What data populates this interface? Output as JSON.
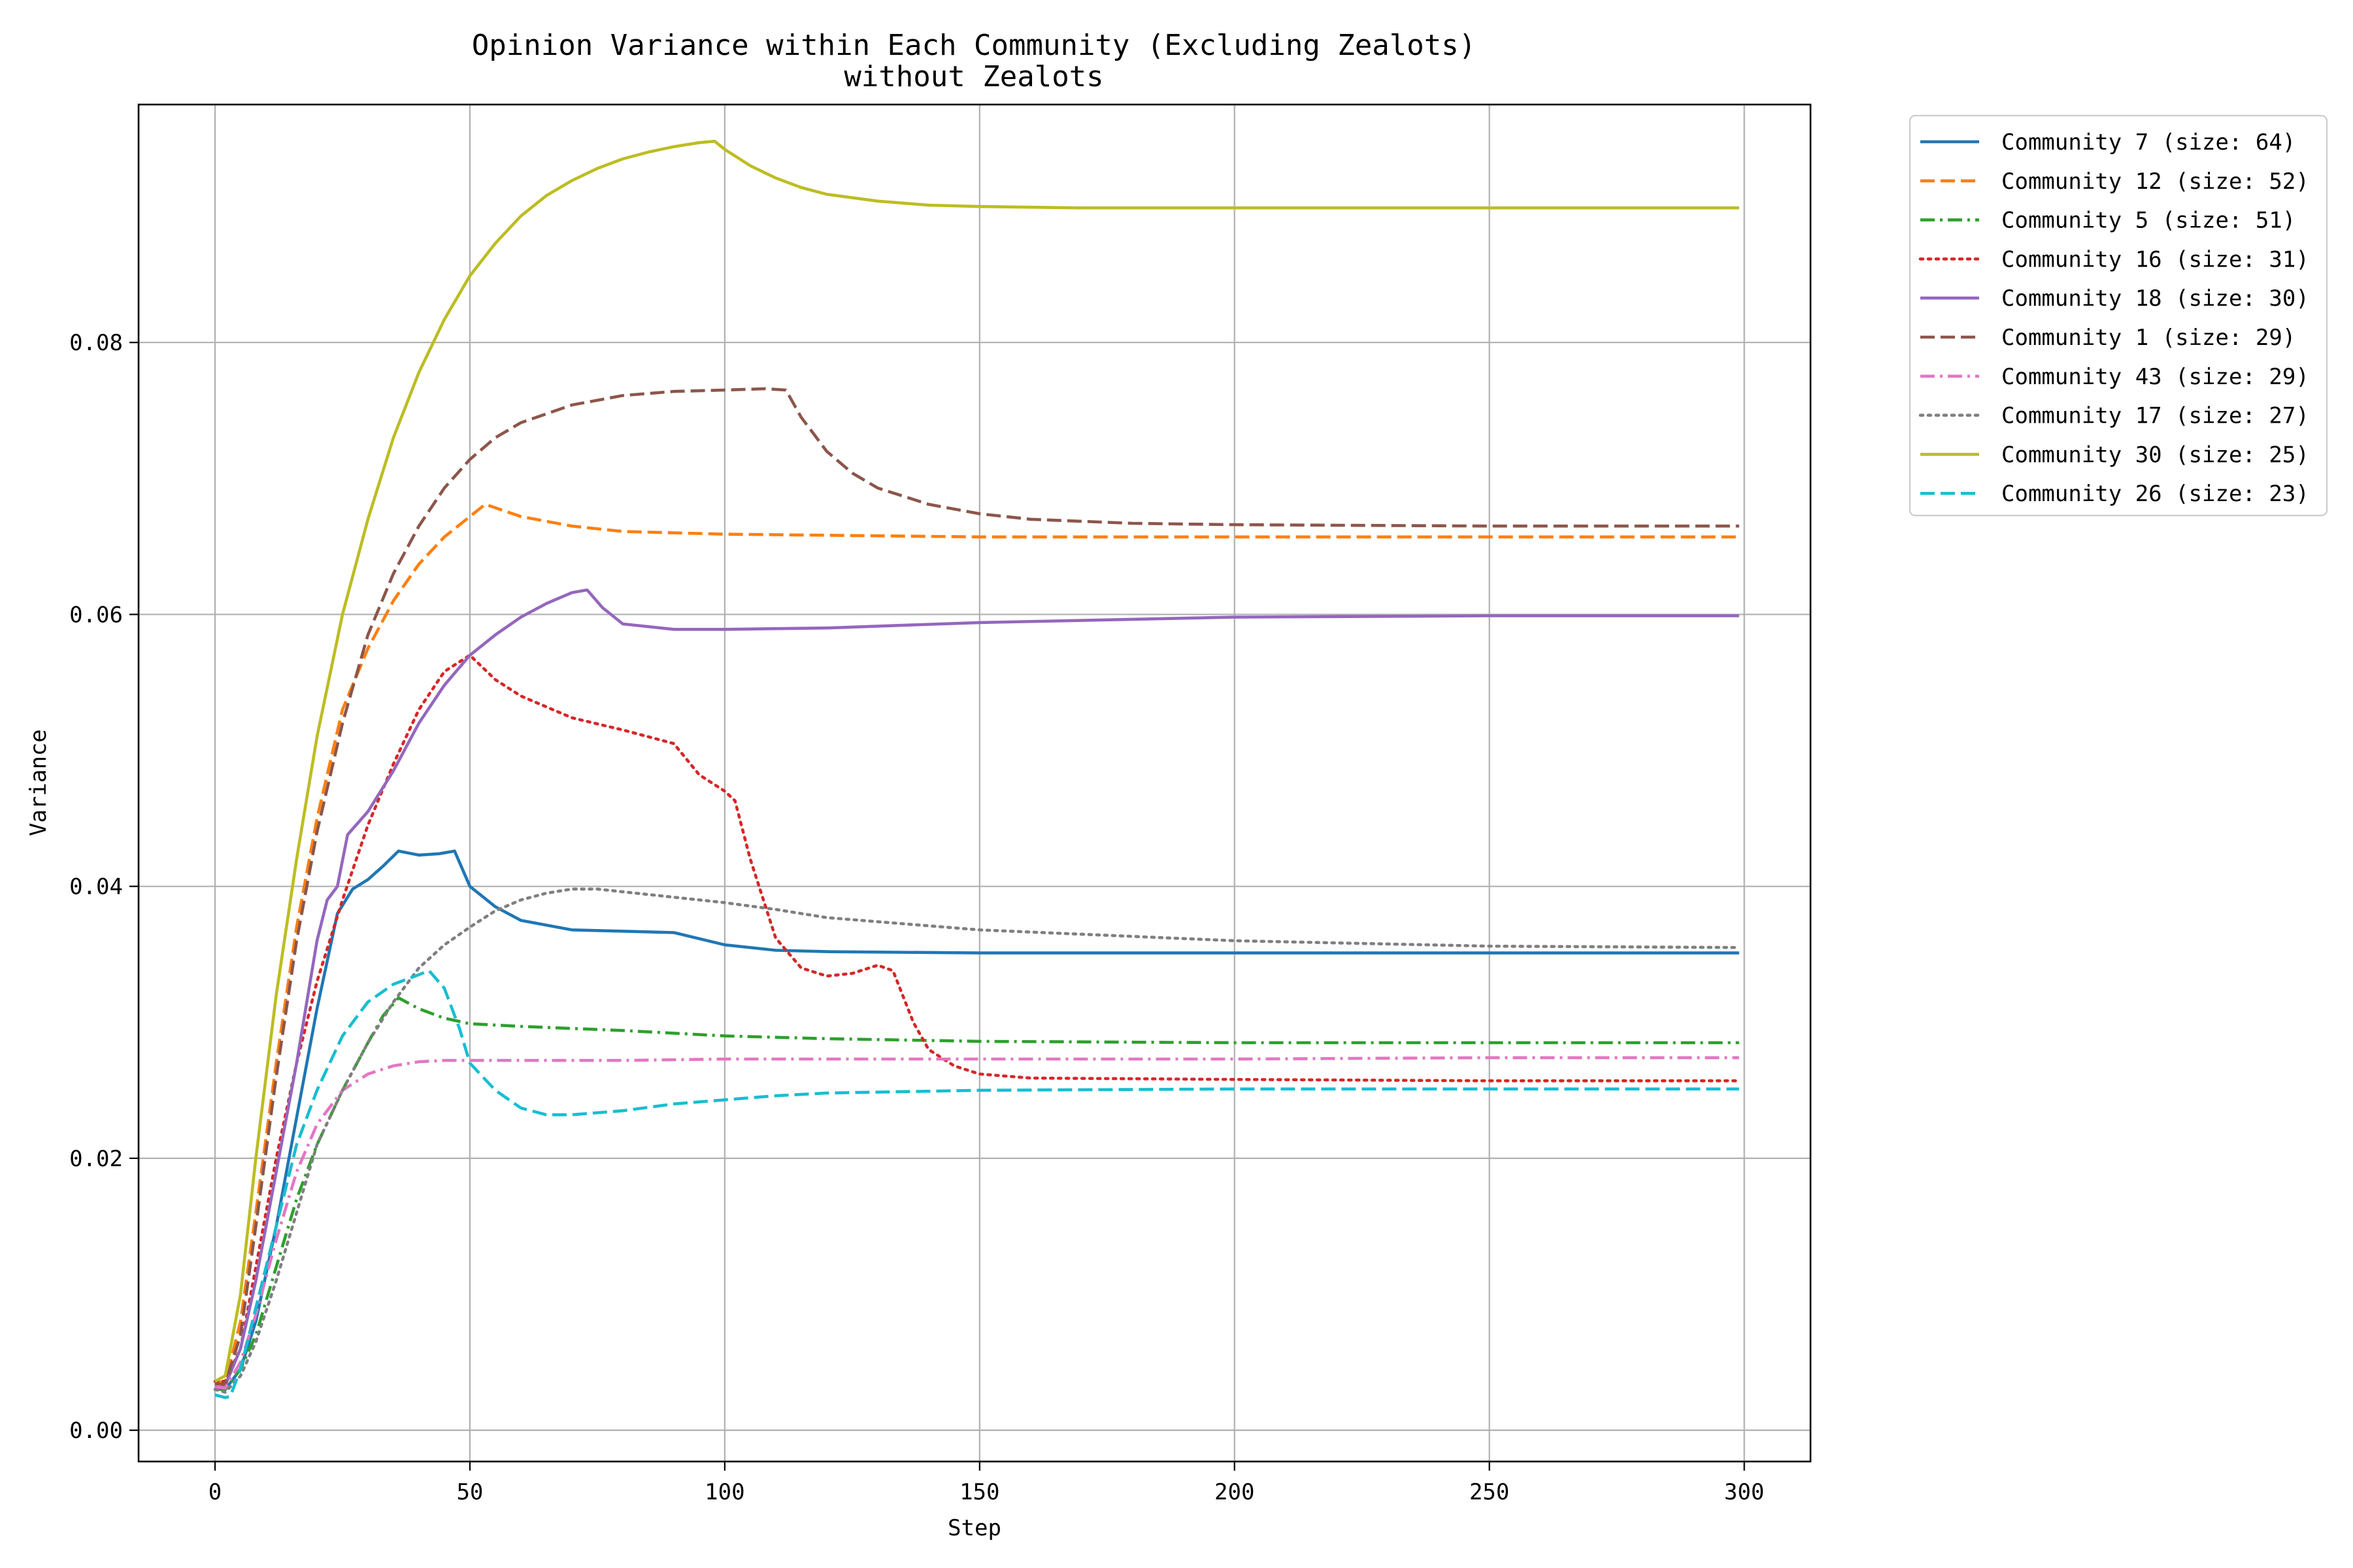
{
  "chart_data": {
    "type": "line",
    "title": "Opinion Variance within Each Community (Excluding Zealots)",
    "subtitle": "without Zealots",
    "xlabel": "Step",
    "ylabel": "Variance",
    "xlim": [
      -15,
      313
    ],
    "ylim": [
      -0.0023,
      0.0975
    ],
    "x_ticks": [
      0,
      50,
      100,
      150,
      200,
      250,
      300
    ],
    "x_tick_labels": [
      "0",
      "50",
      "100",
      "150",
      "200",
      "250",
      "300"
    ],
    "y_ticks": [
      0.0,
      0.02,
      0.04,
      0.06,
      0.08
    ],
    "y_tick_labels": [
      "0.00",
      "0.02",
      "0.04",
      "0.06",
      "0.08"
    ],
    "grid": true,
    "legend_position": "outside-top-right",
    "series": [
      {
        "name": "Community 7 (size: 64)",
        "color": "#1f77b4",
        "dash": "solid",
        "x": [
          0,
          2,
          5,
          8,
          12,
          16,
          20,
          24,
          27,
          30,
          33,
          36,
          40,
          44,
          47,
          50,
          55,
          60,
          70,
          80,
          90,
          100,
          110,
          120,
          150,
          200,
          250,
          299
        ],
        "y": [
          0.0032,
          0.003,
          0.0045,
          0.008,
          0.015,
          0.023,
          0.031,
          0.038,
          0.0398,
          0.0405,
          0.0415,
          0.0426,
          0.0423,
          0.0424,
          0.0426,
          0.04,
          0.0385,
          0.0375,
          0.0368,
          0.0367,
          0.0366,
          0.0357,
          0.0353,
          0.0352,
          0.0351,
          0.0351,
          0.0351,
          0.0351
        ]
      },
      {
        "name": "Community 12 (size: 52)",
        "color": "#ff7f0e",
        "dash": "dashed",
        "x": [
          0,
          2,
          5,
          8,
          12,
          16,
          20,
          25,
          30,
          35,
          40,
          45,
          50,
          53,
          60,
          70,
          80,
          100,
          150,
          200,
          250,
          299
        ],
        "y": [
          0.0036,
          0.0035,
          0.008,
          0.016,
          0.027,
          0.037,
          0.045,
          0.053,
          0.0575,
          0.061,
          0.0637,
          0.0657,
          0.0672,
          0.0681,
          0.0672,
          0.0665,
          0.0661,
          0.0659,
          0.0657,
          0.0657,
          0.0657,
          0.0657
        ]
      },
      {
        "name": "Community 5 (size: 51)",
        "color": "#2ca02c",
        "dash": "dashdot",
        "x": [
          0,
          2,
          5,
          8,
          12,
          16,
          20,
          25,
          30,
          33,
          36,
          40,
          45,
          50,
          60,
          80,
          100,
          120,
          150,
          200,
          250,
          299
        ],
        "y": [
          0.003,
          0.003,
          0.0045,
          0.007,
          0.012,
          0.017,
          0.021,
          0.025,
          0.0285,
          0.0305,
          0.0318,
          0.031,
          0.0303,
          0.0299,
          0.0297,
          0.0294,
          0.029,
          0.0288,
          0.0286,
          0.0285,
          0.0285,
          0.0285
        ]
      },
      {
        "name": "Community 16 (size: 31)",
        "color": "#d62728",
        "dash": "dotted",
        "x": [
          0,
          2,
          5,
          8,
          12,
          16,
          20,
          25,
          30,
          35,
          40,
          45,
          50,
          55,
          60,
          70,
          80,
          90,
          95,
          100,
          102,
          105,
          110,
          115,
          120,
          125,
          130,
          133,
          137,
          140,
          145,
          150,
          160,
          200,
          250,
          299
        ],
        "y": [
          0.0036,
          0.0036,
          0.006,
          0.012,
          0.02,
          0.027,
          0.033,
          0.039,
          0.0445,
          0.049,
          0.053,
          0.0558,
          0.057,
          0.0552,
          0.054,
          0.0524,
          0.0515,
          0.0505,
          0.0482,
          0.047,
          0.0463,
          0.042,
          0.0362,
          0.034,
          0.0334,
          0.0336,
          0.0342,
          0.0338,
          0.03,
          0.028,
          0.0268,
          0.0262,
          0.0259,
          0.0258,
          0.0257,
          0.0257
        ]
      },
      {
        "name": "Community 18 (size: 30)",
        "color": "#9467bd",
        "dash": "solid",
        "x": [
          0,
          2,
          5,
          8,
          12,
          16,
          20,
          22,
          24,
          26,
          30,
          35,
          40,
          45,
          50,
          55,
          60,
          65,
          70,
          73,
          76,
          80,
          90,
          100,
          120,
          150,
          200,
          250,
          299
        ],
        "y": [
          0.003,
          0.0033,
          0.006,
          0.011,
          0.019,
          0.027,
          0.036,
          0.039,
          0.04,
          0.0438,
          0.0455,
          0.0485,
          0.052,
          0.0548,
          0.057,
          0.0585,
          0.0598,
          0.0608,
          0.0616,
          0.0618,
          0.0605,
          0.0593,
          0.0589,
          0.0589,
          0.059,
          0.0594,
          0.0598,
          0.0599,
          0.0599
        ]
      },
      {
        "name": "Community 1 (size: 29)",
        "color": "#8c564b",
        "dash": "dashed",
        "x": [
          0,
          2,
          5,
          8,
          12,
          16,
          20,
          25,
          30,
          35,
          40,
          45,
          50,
          55,
          60,
          70,
          80,
          90,
          100,
          108,
          112,
          115,
          120,
          125,
          130,
          140,
          150,
          160,
          180,
          200,
          250,
          299
        ],
        "y": [
          0.0034,
          0.0034,
          0.007,
          0.015,
          0.026,
          0.036,
          0.044,
          0.052,
          0.0585,
          0.063,
          0.0665,
          0.0693,
          0.0714,
          0.073,
          0.0741,
          0.0754,
          0.0761,
          0.0764,
          0.0765,
          0.0766,
          0.0765,
          0.0745,
          0.072,
          0.0704,
          0.0693,
          0.0681,
          0.0674,
          0.067,
          0.0667,
          0.0666,
          0.0665,
          0.0665
        ]
      },
      {
        "name": "Community 43 (size: 29)",
        "color": "#e377c2",
        "dash": "dashdot",
        "x": [
          0,
          2,
          5,
          8,
          12,
          16,
          20,
          25,
          30,
          35,
          40,
          45,
          50,
          60,
          80,
          100,
          150,
          200,
          250,
          299
        ],
        "y": [
          0.0032,
          0.0031,
          0.005,
          0.0085,
          0.014,
          0.019,
          0.0225,
          0.025,
          0.0262,
          0.0268,
          0.0271,
          0.0272,
          0.0272,
          0.0272,
          0.0272,
          0.0273,
          0.0273,
          0.0273,
          0.0274,
          0.0274
        ]
      },
      {
        "name": "Community 17 (size: 27)",
        "color": "#7f7f7f",
        "dash": "dotted",
        "x": [
          0,
          2,
          5,
          8,
          12,
          16,
          20,
          25,
          30,
          35,
          40,
          45,
          50,
          55,
          60,
          65,
          70,
          75,
          80,
          90,
          100,
          110,
          120,
          150,
          200,
          250,
          299
        ],
        "y": [
          0.003,
          0.0028,
          0.004,
          0.0065,
          0.011,
          0.016,
          0.021,
          0.025,
          0.0285,
          0.0315,
          0.034,
          0.0357,
          0.037,
          0.0382,
          0.039,
          0.0395,
          0.0398,
          0.0398,
          0.0396,
          0.0392,
          0.0388,
          0.0383,
          0.0377,
          0.0368,
          0.036,
          0.0356,
          0.0355
        ]
      },
      {
        "name": "Community 30 (size: 25)",
        "color": "#bcbd22",
        "dash": "solid",
        "x": [
          0,
          2,
          5,
          8,
          12,
          16,
          20,
          25,
          30,
          35,
          40,
          45,
          50,
          55,
          60,
          65,
          70,
          75,
          80,
          85,
          90,
          95,
          98,
          100,
          105,
          110,
          115,
          120,
          130,
          140,
          150,
          170,
          200,
          250,
          299
        ],
        "y": [
          0.0036,
          0.004,
          0.01,
          0.02,
          0.032,
          0.042,
          0.051,
          0.06,
          0.067,
          0.073,
          0.0778,
          0.0817,
          0.0849,
          0.0873,
          0.0893,
          0.0908,
          0.0919,
          0.0928,
          0.0935,
          0.094,
          0.0944,
          0.0947,
          0.0948,
          0.0942,
          0.093,
          0.0921,
          0.0914,
          0.0909,
          0.0904,
          0.0901,
          0.09,
          0.0899,
          0.0899,
          0.0899,
          0.0899
        ]
      },
      {
        "name": "Community 26 (size: 23)",
        "color": "#17becf",
        "dash": "dashed",
        "x": [
          0,
          2,
          3,
          5,
          8,
          12,
          16,
          20,
          25,
          30,
          35,
          40,
          42,
          45,
          48,
          50,
          55,
          60,
          65,
          70,
          80,
          90,
          100,
          110,
          120,
          150,
          200,
          250,
          299
        ],
        "y": [
          0.0026,
          0.0024,
          0.0025,
          0.0045,
          0.009,
          0.015,
          0.021,
          0.025,
          0.029,
          0.0315,
          0.0328,
          0.0335,
          0.0338,
          0.0325,
          0.0295,
          0.027,
          0.025,
          0.0237,
          0.0232,
          0.0232,
          0.0235,
          0.024,
          0.0243,
          0.0246,
          0.0248,
          0.025,
          0.0251,
          0.0251,
          0.0251
        ]
      }
    ]
  }
}
